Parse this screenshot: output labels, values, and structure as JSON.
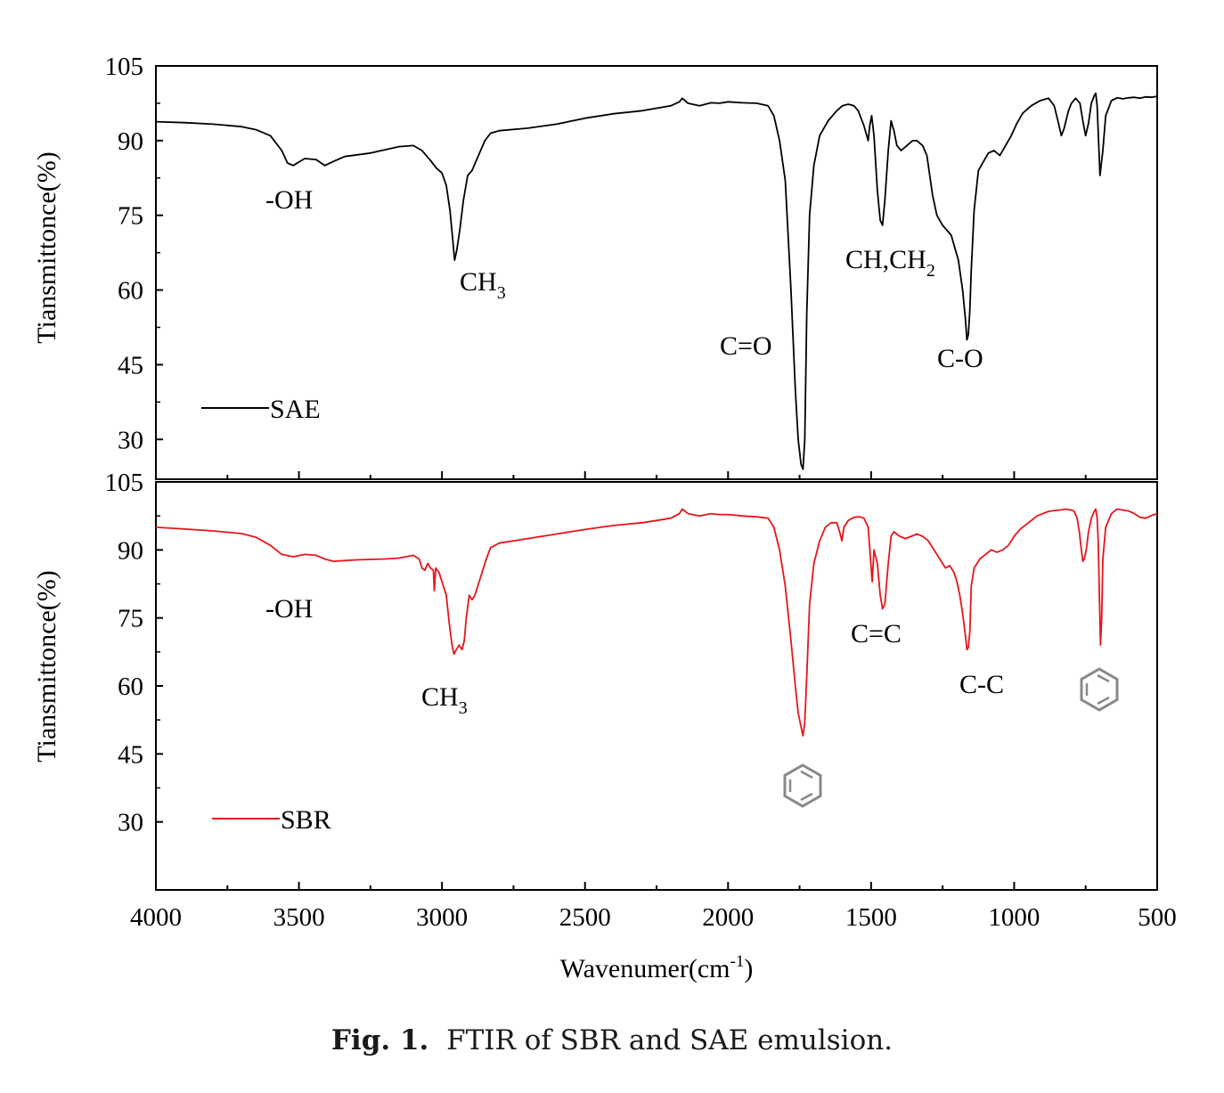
{
  "caption": {
    "label": "Fig. 1.",
    "text": "FTIR of SBR and SAE emulsion."
  },
  "colors": {
    "SAE": "#000000",
    "SBR": "#e8141a",
    "benzene": "#888888"
  },
  "chart_data": [
    {
      "type": "line",
      "panel": "top",
      "ylabel": "Tiansmittonce(%)",
      "xlim": [
        4000,
        500
      ],
      "ylim": [
        22,
        105
      ],
      "yticks": [
        30,
        45,
        60,
        75,
        90,
        105
      ],
      "legend": "bottom-left",
      "series": [
        {
          "name": "SAE",
          "color": "#000000",
          "x": [
            4000,
            3900,
            3800,
            3700,
            3650,
            3600,
            3560,
            3540,
            3520,
            3480,
            3440,
            3410,
            3380,
            3340,
            3250,
            3150,
            3100,
            3070,
            3040,
            3020,
            3000,
            2985,
            2972,
            2962,
            2956,
            2948,
            2938,
            2925,
            2910,
            2895,
            2880,
            2865,
            2850,
            2830,
            2800,
            2700,
            2600,
            2500,
            2400,
            2300,
            2250,
            2200,
            2170,
            2160,
            2140,
            2100,
            2060,
            2030,
            2000,
            1950,
            1900,
            1860,
            1840,
            1820,
            1800,
            1780,
            1765,
            1755,
            1745,
            1738,
            1732,
            1725,
            1715,
            1700,
            1680,
            1650,
            1620,
            1600,
            1580,
            1560,
            1545,
            1525,
            1510,
            1505,
            1498,
            1490,
            1478,
            1468,
            1460,
            1452,
            1440,
            1430,
            1420,
            1410,
            1395,
            1375,
            1355,
            1340,
            1320,
            1305,
            1295,
            1285,
            1270,
            1250,
            1235,
            1220,
            1210,
            1195,
            1180,
            1170,
            1165,
            1160,
            1155,
            1150,
            1140,
            1125,
            1105,
            1090,
            1070,
            1050,
            1030,
            1010,
            990,
            970,
            940,
            910,
            880,
            860,
            845,
            835,
            825,
            810,
            800,
            785,
            770,
            760,
            750,
            740,
            730,
            720,
            715,
            710,
            705,
            700,
            690,
            680,
            660,
            640,
            620,
            600,
            580,
            560,
            540,
            520,
            500
          ],
          "y": [
            93.8,
            93.6,
            93.3,
            92.8,
            92.2,
            91.0,
            88.0,
            85.5,
            85.0,
            86.4,
            86.2,
            85.0,
            85.8,
            86.8,
            87.5,
            88.8,
            89.0,
            88.0,
            86.0,
            84.5,
            83.5,
            81.0,
            76.0,
            70.0,
            66.0,
            68.0,
            72.0,
            78.0,
            83.0,
            84.0,
            86.0,
            88.0,
            90.0,
            91.5,
            92.0,
            92.5,
            93.3,
            94.5,
            95.4,
            96.0,
            96.5,
            97.0,
            97.8,
            98.5,
            97.5,
            97.0,
            97.6,
            97.5,
            97.8,
            97.6,
            97.5,
            97.0,
            95.0,
            90.0,
            82.0,
            60.0,
            40.0,
            30.0,
            25.0,
            24.0,
            30.0,
            55.0,
            75.0,
            85.0,
            91.0,
            94.0,
            96.0,
            97.0,
            97.3,
            97.0,
            96.0,
            93.0,
            90.0,
            93.0,
            95.0,
            91.0,
            80.0,
            74.0,
            73.0,
            78.0,
            88.0,
            94.0,
            92.0,
            89.0,
            88.0,
            89.0,
            90.0,
            90.0,
            89.0,
            87.0,
            83.0,
            79.0,
            75.0,
            73.0,
            72.0,
            71.0,
            69.0,
            66.0,
            60.0,
            54.0,
            50.0,
            51.0,
            56.0,
            64.0,
            76.0,
            84.0,
            86.0,
            87.5,
            88.0,
            87.0,
            89.0,
            91.0,
            93.5,
            95.5,
            97.0,
            98.0,
            98.5,
            97.0,
            93.5,
            91.0,
            92.5,
            96.0,
            97.5,
            98.5,
            97.5,
            94.0,
            91.0,
            93.5,
            97.5,
            99.0,
            99.5,
            97.0,
            90.0,
            83.0,
            88.0,
            95.0,
            98.0,
            98.6,
            98.4,
            98.6,
            98.7,
            98.5,
            98.8,
            98.7,
            98.9
          ]
        }
      ],
      "annotations": [
        "-OH",
        "CH3",
        "C=O",
        "CH,CH2",
        "C-O"
      ]
    },
    {
      "type": "line",
      "panel": "bottom",
      "xlabel": "Wavenumer(cm-1)",
      "ylabel": "Tiansmittonce(%)",
      "xlim": [
        4000,
        500
      ],
      "ylim": [
        15,
        105
      ],
      "yticks": [
        30,
        45,
        60,
        75,
        90,
        105
      ],
      "xticks": [
        4000,
        3500,
        3000,
        2500,
        2000,
        1500,
        1000,
        500
      ],
      "legend": "bottom-left",
      "series": [
        {
          "name": "SBR",
          "color": "#e8141a",
          "x": [
            4000,
            3900,
            3800,
            3700,
            3650,
            3600,
            3560,
            3520,
            3480,
            3440,
            3410,
            3380,
            3300,
            3200,
            3150,
            3100,
            3080,
            3070,
            3060,
            3050,
            3040,
            3030,
            3027,
            3022,
            3010,
            3000,
            2985,
            2975,
            2965,
            2958,
            2950,
            2940,
            2930,
            2922,
            2915,
            2905,
            2895,
            2885,
            2870,
            2855,
            2845,
            2830,
            2800,
            2700,
            2600,
            2500,
            2400,
            2300,
            2250,
            2200,
            2170,
            2160,
            2140,
            2100,
            2060,
            2030,
            2000,
            1950,
            1900,
            1860,
            1840,
            1820,
            1800,
            1780,
            1765,
            1755,
            1745,
            1738,
            1732,
            1725,
            1715,
            1700,
            1680,
            1660,
            1640,
            1620,
            1610,
            1602,
            1595,
            1580,
            1560,
            1540,
            1525,
            1510,
            1502,
            1496,
            1490,
            1478,
            1468,
            1460,
            1452,
            1440,
            1430,
            1420,
            1400,
            1380,
            1360,
            1340,
            1320,
            1300,
            1280,
            1260,
            1240,
            1225,
            1210,
            1200,
            1190,
            1180,
            1170,
            1165,
            1160,
            1155,
            1150,
            1140,
            1120,
            1100,
            1080,
            1060,
            1040,
            1020,
            1000,
            980,
            960,
            940,
            920,
            900,
            880,
            860,
            840,
            820,
            800,
            790,
            780,
            772,
            765,
            760,
            755,
            748,
            740,
            730,
            720,
            715,
            710,
            706,
            702,
            698,
            694,
            690,
            680,
            660,
            640,
            620,
            600,
            580,
            560,
            540,
            520,
            500
          ],
          "y": [
            95.0,
            94.6,
            94.2,
            93.6,
            92.8,
            91.0,
            89.0,
            88.5,
            89.0,
            88.8,
            88.0,
            87.5,
            87.8,
            88.0,
            88.2,
            88.8,
            88.0,
            86.0,
            85.5,
            87.0,
            86.0,
            85.5,
            81.0,
            86.0,
            85.0,
            83.0,
            80.0,
            74.0,
            69.0,
            67.0,
            68.0,
            69.0,
            68.0,
            70.0,
            75.0,
            80.0,
            79.0,
            80.0,
            83.0,
            86.0,
            88.0,
            90.5,
            91.5,
            92.5,
            93.5,
            94.5,
            95.4,
            96.0,
            96.5,
            97.0,
            98.0,
            99.0,
            98.0,
            97.5,
            98.0,
            97.8,
            97.8,
            97.5,
            97.3,
            97.0,
            95.0,
            90.0,
            82.0,
            70.0,
            60.0,
            54.0,
            51.0,
            49.0,
            52.0,
            62.0,
            78.0,
            87.0,
            92.0,
            95.0,
            96.0,
            96.0,
            94.0,
            92.0,
            95.0,
            96.5,
            97.2,
            97.3,
            97.0,
            95.0,
            88.0,
            83.0,
            90.0,
            87.0,
            80.0,
            77.0,
            78.0,
            87.0,
            93.0,
            94.0,
            93.0,
            92.5,
            93.0,
            93.5,
            93.0,
            92.0,
            90.0,
            88.0,
            86.0,
            86.5,
            85.0,
            83.0,
            80.0,
            76.0,
            71.0,
            68.0,
            68.5,
            72.0,
            82.0,
            86.0,
            88.0,
            89.0,
            90.0,
            89.5,
            90.0,
            91.0,
            93.0,
            94.5,
            95.5,
            96.5,
            97.5,
            98.0,
            98.5,
            98.7,
            98.8,
            99.0,
            98.8,
            98.5,
            97.0,
            94.0,
            90.0,
            87.5,
            88.0,
            90.0,
            94.0,
            97.0,
            98.5,
            99.0,
            97.0,
            92.0,
            80.0,
            69.0,
            75.0,
            88.0,
            95.0,
            98.0,
            99.0,
            98.8,
            98.6,
            98.0,
            97.2,
            97.0,
            97.6,
            98.0
          ]
        }
      ],
      "annotations": [
        "-OH",
        "CH3",
        "C=C",
        "C-C"
      ]
    }
  ]
}
